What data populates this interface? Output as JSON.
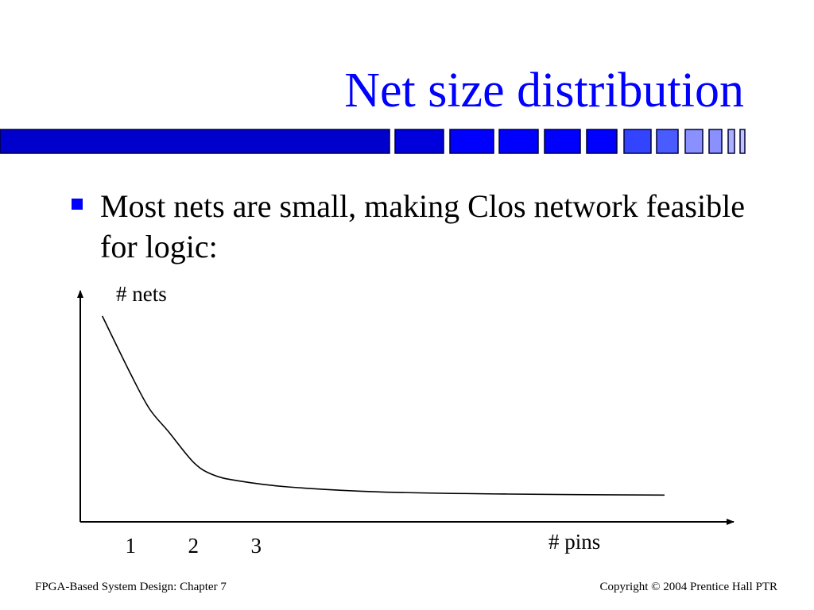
{
  "slide": {
    "title": "Net size distribution",
    "bullet": "Most nets are small, making Clos network feasible for logic:"
  },
  "footer": {
    "left": "FPGA-Based System Design: Chapter 7",
    "right": "Copyright © 2004 Prentice Hall PTR"
  },
  "colors": {
    "title": "#0000ff",
    "bullet": "#0000ff",
    "stripe_dark": "#0000cc",
    "stripe_mid": "#0000ff",
    "stripe_light": "#4a5cff",
    "stripe_lighter": "#8a90ff"
  },
  "chart_data": {
    "type": "line",
    "xlabel": "# pins",
    "ylabel": "# nets",
    "x_ticks": [
      "1",
      "2",
      "3"
    ],
    "grid": false,
    "legend": "none",
    "series": [
      {
        "x": [
          0.55,
          1.0,
          1.3,
          1.6,
          2.0,
          2.3,
          2.7,
          3.5,
          5,
          7,
          9.5
        ],
        "y": [
          100,
          72,
          55,
          44,
          29,
          23,
          20,
          17,
          14.5,
          13.5,
          13
        ]
      }
    ],
    "xlim": [
      0.2,
      10.5
    ],
    "ylim": [
      0,
      110
    ]
  }
}
